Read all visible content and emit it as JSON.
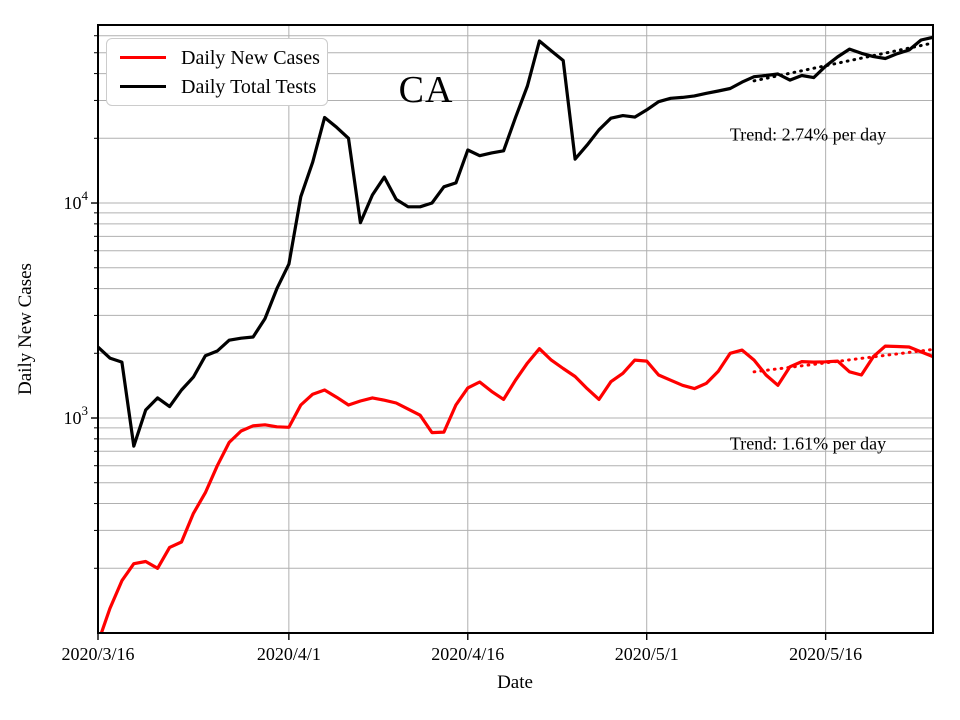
{
  "figure": {
    "title": "CA",
    "xlabel": "Date",
    "ylabel": "Daily New Cases"
  },
  "legend": {
    "items": [
      {
        "label": "Daily New Cases",
        "color": "#ff0000"
      },
      {
        "label": "Daily Total Tests",
        "color": "#000000"
      }
    ]
  },
  "annotations": [
    {
      "text": "Trend: 2.74% per day",
      "applies_to": "Daily Total Tests"
    },
    {
      "text": "Trend: 1.61% per day",
      "applies_to": "Daily New Cases"
    }
  ],
  "chart_data": {
    "type": "line",
    "title": "CA",
    "xlabel": "Date",
    "ylabel": "Daily New Cases",
    "y_scale": "log",
    "ylim": [
      100,
      67300
    ],
    "grid": true,
    "legend_position": "upper left",
    "grid_color": "#b0b0b0",
    "x_tick_labels": [
      "2020/3/16",
      "2020/4/1",
      "2020/4/16",
      "2020/5/1",
      "2020/5/16"
    ],
    "x_tick_days": [
      0,
      16,
      31,
      46,
      61
    ],
    "y_major_ticks": [
      {
        "value": 1000,
        "label_base": "10",
        "label_exp": "3"
      },
      {
        "value": 10000,
        "label_base": "10",
        "label_exp": "4"
      }
    ],
    "dates": [
      "2020/3/16",
      "2020/3/17",
      "2020/3/18",
      "2020/3/19",
      "2020/3/20",
      "2020/3/21",
      "2020/3/22",
      "2020/3/23",
      "2020/3/24",
      "2020/3/25",
      "2020/3/26",
      "2020/3/27",
      "2020/3/28",
      "2020/3/29",
      "2020/3/30",
      "2020/3/31",
      "2020/4/1",
      "2020/4/2",
      "2020/4/3",
      "2020/4/4",
      "2020/4/5",
      "2020/4/6",
      "2020/4/7",
      "2020/4/8",
      "2020/4/9",
      "2020/4/10",
      "2020/4/11",
      "2020/4/12",
      "2020/4/13",
      "2020/4/14",
      "2020/4/15",
      "2020/4/16",
      "2020/4/17",
      "2020/4/18",
      "2020/4/19",
      "2020/4/20",
      "2020/4/21",
      "2020/4/22",
      "2020/4/23",
      "2020/4/24",
      "2020/4/25",
      "2020/4/26",
      "2020/4/27",
      "2020/4/28",
      "2020/4/29",
      "2020/4/30",
      "2020/5/1",
      "2020/5/2",
      "2020/5/3",
      "2020/5/4",
      "2020/5/5",
      "2020/5/6",
      "2020/5/7",
      "2020/5/8",
      "2020/5/9",
      "2020/5/10",
      "2020/5/11",
      "2020/5/12",
      "2020/5/13",
      "2020/5/14",
      "2020/5/15",
      "2020/5/16",
      "2020/5/17",
      "2020/5/18",
      "2020/5/19",
      "2020/5/20",
      "2020/5/21",
      "2020/5/22",
      "2020/5/23",
      "2020/5/24",
      "2020/5/25"
    ],
    "series": [
      {
        "name": "Daily New Cases",
        "color": "#ff0000",
        "style": "solid",
        "values": [
          90,
          130,
          175,
          210,
          215,
          200,
          250,
          265,
          360,
          450,
          600,
          770,
          870,
          920,
          930,
          910,
          905,
          1150,
          1290,
          1350,
          1250,
          1150,
          1200,
          1240,
          1210,
          1175,
          1100,
          1030,
          855,
          860,
          1150,
          1380,
          1470,
          1330,
          1220,
          1500,
          1800,
          2100,
          1860,
          1700,
          1560,
          1370,
          1220,
          1475,
          1615,
          1860,
          1840,
          1585,
          1500,
          1420,
          1370,
          1450,
          1650,
          2000,
          2070,
          1860,
          1585,
          1420,
          1730,
          1830,
          1820,
          1825,
          1840,
          1640,
          1585,
          1930,
          2160,
          2150,
          2140,
          2030,
          1930
        ]
      },
      {
        "name": "Daily Total Tests",
        "color": "#000000",
        "style": "solid",
        "values": [
          2140,
          1900,
          1820,
          740,
          1090,
          1240,
          1130,
          1350,
          1550,
          1950,
          2050,
          2300,
          2350,
          2380,
          2900,
          4000,
          5200,
          10700,
          15500,
          25000,
          22500,
          20000,
          8100,
          10900,
          13200,
          10400,
          9600,
          9600,
          10000,
          11900,
          12400,
          17650,
          16600,
          17100,
          17500,
          25000,
          35000,
          56700,
          51000,
          46000,
          16000,
          18600,
          21900,
          24800,
          25500,
          25100,
          27100,
          29600,
          30700,
          31000,
          31500,
          32400,
          33200,
          34100,
          36500,
          38700,
          39200,
          39800,
          37300,
          39200,
          38300,
          43300,
          47800,
          52000,
          49700,
          48000,
          47000,
          49500,
          51500,
          57300,
          59000
        ]
      }
    ],
    "trend_lines": [
      {
        "name": "Daily Total Tests trend",
        "label": "Trend: 2.74% per day",
        "color": "#000000",
        "style": "dotted",
        "pct_per_day": 2.74,
        "start_day": 55,
        "end_day": 70,
        "start_value": 37000,
        "end_value": 55500
      },
      {
        "name": "Daily New Cases trend",
        "label": "Trend: 1.61% per day",
        "color": "#ff0000",
        "style": "dotted",
        "pct_per_day": 1.61,
        "start_day": 55,
        "end_day": 70,
        "start_value": 1640,
        "end_value": 2085
      }
    ]
  }
}
